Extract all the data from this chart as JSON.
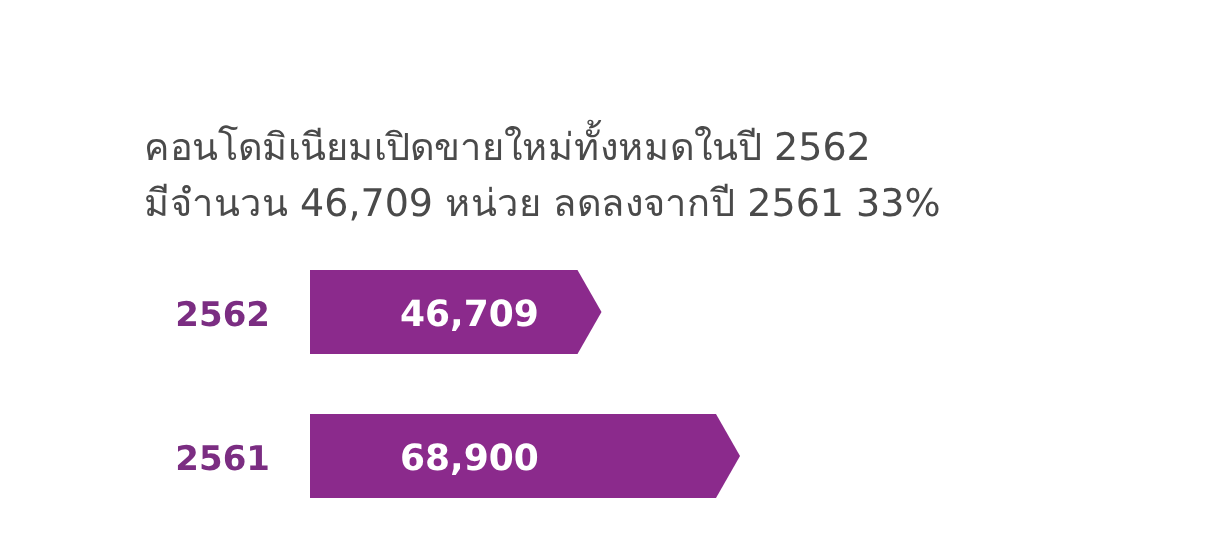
{
  "chart_data": {
    "type": "bar",
    "orientation": "horizontal",
    "title": "คอนโดมิเนียมเปิดขายใหม่ทั้งหมดในปี 2562",
    "subtitle": "มีจำนวน 46,709 หน่วย ลดลงจากปี 2561 33%",
    "categories": [
      "2562",
      "2561"
    ],
    "values": [
      46709,
      68900
    ],
    "color": "#8b2a8c",
    "value_labels": [
      "46,709",
      "68,900"
    ]
  }
}
